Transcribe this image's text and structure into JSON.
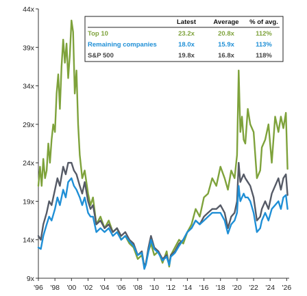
{
  "chart_data": {
    "type": "line",
    "title": "",
    "xlabel": "",
    "ylabel": "",
    "ylim": [
      9,
      44
    ],
    "xlim": [
      1996,
      2026.3
    ],
    "yticks": [
      9,
      14,
      19,
      24,
      29,
      34,
      39,
      44
    ],
    "ytick_labels": [
      "9x",
      "14x",
      "19x",
      "24x",
      "29x",
      "34x",
      "39x",
      "44x"
    ],
    "xticks": [
      1996,
      1998,
      2000,
      2002,
      2004,
      2006,
      2008,
      2010,
      2012,
      2014,
      2016,
      2018,
      2020,
      2022,
      2024,
      2026
    ],
    "xtick_labels": [
      "'96",
      "'98",
      "'00",
      "'02",
      "'04",
      "'06",
      "'08",
      "'10",
      "'12",
      "'14",
      "'16",
      "'18",
      "'20",
      "'22",
      "'24",
      "'26"
    ],
    "grid": false,
    "legend": {
      "placement": "top-right",
      "headers": [
        "Latest",
        "Average",
        "% of avg."
      ],
      "rows": [
        {
          "name": "Top 10",
          "latest": "23.2x",
          "average": "20.8x",
          "pct": "112%",
          "color": "#7ea23b"
        },
        {
          "name": "Remaining companies",
          "latest": "18.0x",
          "average": "15.9x",
          "pct": "113%",
          "color": "#1f8fd6"
        },
        {
          "name": "S&P 500",
          "latest": "19.8x",
          "average": "16.8x",
          "pct": "118%",
          "color": "#555a66"
        }
      ]
    },
    "series": [
      {
        "name": "Top 10",
        "color": "#7ea23b",
        "x": [
          1996.0,
          1996.2,
          1996.4,
          1996.6,
          1996.8,
          1997.0,
          1997.2,
          1997.4,
          1997.6,
          1997.8,
          1998.0,
          1998.2,
          1998.4,
          1998.6,
          1998.8,
          1999.0,
          1999.2,
          1999.4,
          1999.6,
          1999.8,
          2000.0,
          2000.2,
          2000.4,
          2000.6,
          2000.8,
          2001.0,
          2001.3,
          2001.6,
          2002.0,
          2002.3,
          2002.6,
          2003.0,
          2003.5,
          2004.0,
          2004.5,
          2005.0,
          2005.5,
          2006.0,
          2006.5,
          2007.0,
          2007.5,
          2008.0,
          2008.5,
          2008.8,
          2009.0,
          2009.3,
          2009.6,
          2010.0,
          2010.5,
          2011.0,
          2011.5,
          2011.8,
          2012.0,
          2012.5,
          2013.0,
          2013.5,
          2014.0,
          2014.5,
          2015.0,
          2015.5,
          2016.0,
          2016.5,
          2017.0,
          2017.5,
          2018.0,
          2018.5,
          2018.9,
          2019.3,
          2019.7,
          2020.0,
          2020.2,
          2020.4,
          2020.6,
          2020.8,
          2021.0,
          2021.3,
          2021.6,
          2022.0,
          2022.4,
          2022.8,
          2023.0,
          2023.4,
          2023.8,
          2024.2,
          2024.6,
          2025.0,
          2025.3,
          2025.6,
          2025.9,
          2026.1
        ],
        "values": [
          21.0,
          23.5,
          21.0,
          24.5,
          22.0,
          23.0,
          26.5,
          24.0,
          27.0,
          29.0,
          28.0,
          33.0,
          35.5,
          31.0,
          36.5,
          40.0,
          37.0,
          39.5,
          35.0,
          38.0,
          42.5,
          41.0,
          33.0,
          36.0,
          29.0,
          25.0,
          22.0,
          23.0,
          20.0,
          18.5,
          19.5,
          16.0,
          17.0,
          15.5,
          16.5,
          15.0,
          15.5,
          14.0,
          14.5,
          13.5,
          13.0,
          11.5,
          12.0,
          10.5,
          11.0,
          12.5,
          13.5,
          12.0,
          12.5,
          11.0,
          12.5,
          10.5,
          12.0,
          13.0,
          14.0,
          13.5,
          15.0,
          16.0,
          18.0,
          17.0,
          19.5,
          20.0,
          22.0,
          21.0,
          23.5,
          22.0,
          20.5,
          23.0,
          22.0,
          25.0,
          36.0,
          28.0,
          30.0,
          27.0,
          26.5,
          31.0,
          29.0,
          28.0,
          22.0,
          23.0,
          26.0,
          27.0,
          29.0,
          24.0,
          30.0,
          28.0,
          30.0,
          28.5,
          30.5,
          23.2
        ]
      },
      {
        "name": "S&P 500",
        "color": "#555a66",
        "x": [
          1996.0,
          1996.3,
          1996.6,
          1997.0,
          1997.3,
          1997.6,
          1998.0,
          1998.3,
          1998.6,
          1999.0,
          1999.3,
          1999.6,
          2000.0,
          2000.3,
          2000.6,
          2001.0,
          2001.3,
          2001.6,
          2002.0,
          2002.3,
          2002.6,
          2003.0,
          2003.5,
          2004.0,
          2004.5,
          2005.0,
          2005.5,
          2006.0,
          2006.5,
          2007.0,
          2007.5,
          2008.0,
          2008.5,
          2008.8,
          2009.0,
          2009.3,
          2009.6,
          2010.0,
          2010.5,
          2011.0,
          2011.5,
          2011.8,
          2012.0,
          2012.5,
          2013.0,
          2013.5,
          2014.0,
          2014.5,
          2015.0,
          2015.5,
          2016.0,
          2016.5,
          2017.0,
          2017.5,
          2018.0,
          2018.5,
          2018.9,
          2019.3,
          2019.7,
          2020.0,
          2020.2,
          2020.4,
          2020.6,
          2020.8,
          2021.0,
          2021.3,
          2021.6,
          2022.0,
          2022.4,
          2022.8,
          2023.0,
          2023.4,
          2023.8,
          2024.2,
          2024.6,
          2025.0,
          2025.3,
          2025.6,
          2025.9,
          2026.1
        ],
        "values": [
          14.5,
          14.0,
          16.0,
          17.5,
          19.0,
          18.5,
          20.5,
          22.0,
          21.0,
          23.5,
          22.5,
          24.0,
          24.0,
          23.0,
          22.5,
          21.0,
          20.0,
          21.5,
          19.0,
          18.0,
          18.5,
          16.0,
          16.5,
          15.5,
          16.0,
          15.0,
          15.5,
          14.5,
          15.0,
          14.0,
          13.5,
          12.0,
          12.5,
          10.5,
          11.0,
          13.0,
          14.5,
          13.0,
          12.5,
          11.5,
          12.0,
          10.8,
          12.0,
          12.5,
          13.5,
          14.0,
          15.0,
          15.5,
          16.5,
          16.0,
          17.0,
          17.5,
          18.0,
          18.0,
          18.5,
          17.5,
          15.5,
          17.0,
          17.5,
          19.0,
          24.0,
          21.5,
          22.0,
          22.5,
          22.0,
          21.5,
          21.0,
          19.5,
          16.5,
          17.0,
          18.0,
          19.0,
          18.0,
          20.0,
          21.0,
          22.0,
          20.5,
          22.0,
          22.5,
          19.8
        ]
      },
      {
        "name": "Remaining companies",
        "color": "#1f8fd6",
        "x": [
          1996.0,
          1996.3,
          1996.6,
          1997.0,
          1997.3,
          1997.6,
          1998.0,
          1998.3,
          1998.6,
          1999.0,
          1999.3,
          1999.6,
          2000.0,
          2000.3,
          2000.6,
          2001.0,
          2001.3,
          2001.6,
          2002.0,
          2002.3,
          2002.6,
          2003.0,
          2003.5,
          2004.0,
          2004.5,
          2005.0,
          2005.5,
          2006.0,
          2006.5,
          2007.0,
          2007.5,
          2008.0,
          2008.5,
          2008.8,
          2009.0,
          2009.3,
          2009.6,
          2010.0,
          2010.5,
          2011.0,
          2011.5,
          2011.8,
          2012.0,
          2012.5,
          2013.0,
          2013.5,
          2014.0,
          2014.5,
          2015.0,
          2015.5,
          2016.0,
          2016.5,
          2017.0,
          2017.5,
          2018.0,
          2018.5,
          2018.9,
          2019.3,
          2019.7,
          2020.0,
          2020.2,
          2020.4,
          2020.6,
          2020.8,
          2021.0,
          2021.3,
          2021.6,
          2022.0,
          2022.4,
          2022.8,
          2023.0,
          2023.4,
          2023.8,
          2024.2,
          2024.6,
          2025.0,
          2025.3,
          2025.6,
          2025.9,
          2026.1
        ],
        "values": [
          13.0,
          12.8,
          14.5,
          16.0,
          17.0,
          16.5,
          18.0,
          19.5,
          18.5,
          20.5,
          19.5,
          21.5,
          22.0,
          21.0,
          20.5,
          19.5,
          18.5,
          19.5,
          17.5,
          17.0,
          17.0,
          15.0,
          15.5,
          15.0,
          15.5,
          14.5,
          15.0,
          14.0,
          14.5,
          13.8,
          13.2,
          12.0,
          12.3,
          10.2,
          10.8,
          12.5,
          14.0,
          12.8,
          12.3,
          11.3,
          11.8,
          10.7,
          11.8,
          12.3,
          13.2,
          14.0,
          15.0,
          15.5,
          16.5,
          16.0,
          16.5,
          17.0,
          17.5,
          17.5,
          17.5,
          16.5,
          14.8,
          16.0,
          16.5,
          17.5,
          21.0,
          19.0,
          19.5,
          20.0,
          19.5,
          19.5,
          19.0,
          17.5,
          15.0,
          15.5,
          16.5,
          17.5,
          16.5,
          18.0,
          18.5,
          19.0,
          18.0,
          19.5,
          19.8,
          18.0
        ]
      }
    ]
  }
}
